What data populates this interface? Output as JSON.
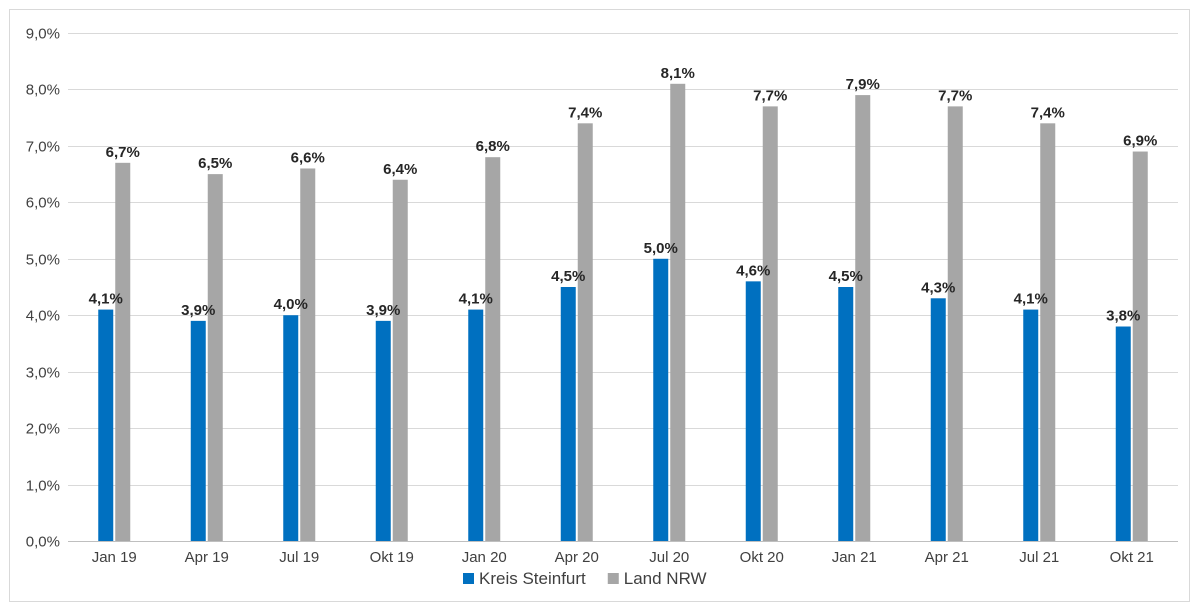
{
  "chart_data": {
    "type": "bar",
    "categories": [
      "Jan 19",
      "Apr 19",
      "Jul 19",
      "Okt 19",
      "Jan 20",
      "Apr 20",
      "Jul 20",
      "Okt 20",
      "Jan 21",
      "Apr 21",
      "Jul 21",
      "Okt 21"
    ],
    "series": [
      {
        "name": "Kreis Steinfurt",
        "color": "#0070c0",
        "values": [
          4.1,
          3.9,
          4.0,
          3.9,
          4.1,
          4.5,
          5.0,
          4.6,
          4.5,
          4.3,
          4.1,
          3.8
        ],
        "labels": [
          "4,1%",
          "3,9%",
          "4,0%",
          "3,9%",
          "4,1%",
          "4,5%",
          "5,0%",
          "4,6%",
          "4,5%",
          "4,3%",
          "4,1%",
          "3,8%"
        ]
      },
      {
        "name": "Land NRW",
        "color": "#a6a6a6",
        "values": [
          6.7,
          6.5,
          6.6,
          6.4,
          6.8,
          7.4,
          8.1,
          7.7,
          7.9,
          7.7,
          7.4,
          6.9
        ],
        "labels": [
          "6,7%",
          "6,5%",
          "6,6%",
          "6,4%",
          "6,8%",
          "7,4%",
          "8,1%",
          "7,7%",
          "7,9%",
          "7,7%",
          "7,4%",
          "6,9%"
        ]
      }
    ],
    "ylim": [
      0,
      9
    ],
    "yticks": [
      0,
      1,
      2,
      3,
      4,
      5,
      6,
      7,
      8,
      9
    ],
    "ytick_labels": [
      "0,0%",
      "1,0%",
      "2,0%",
      "3,0%",
      "4,0%",
      "5,0%",
      "6,0%",
      "7,0%",
      "8,0%",
      "9,0%"
    ],
    "grid": true,
    "legend_position": "bottom-center"
  }
}
